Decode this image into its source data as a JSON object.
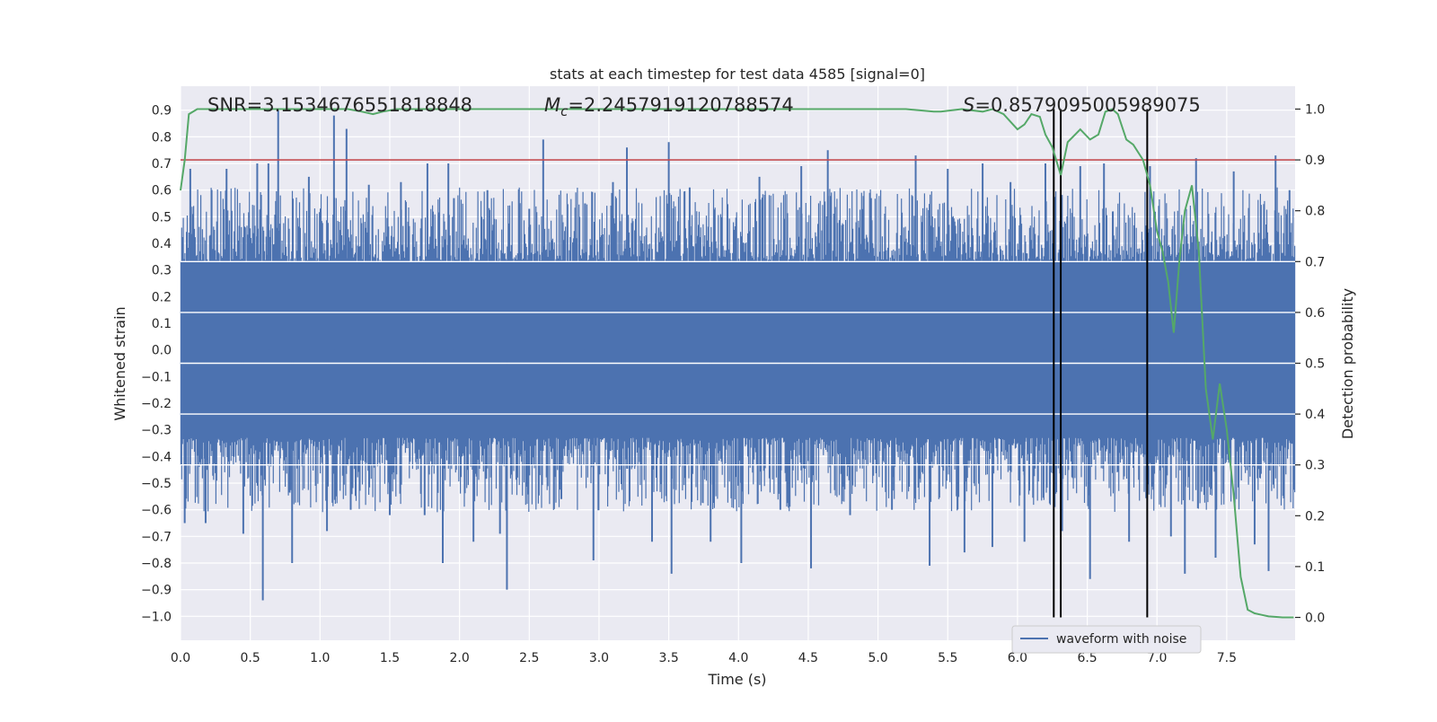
{
  "chart_data": {
    "type": "line",
    "title": "stats at each timestep for test data 4585 [signal=0]",
    "xlabel": "Time (s)",
    "ylabel": "Whitened strain",
    "ylabel_right": "Detection probability",
    "xlim": [
      0.0,
      7.99
    ],
    "ylim": [
      -1.09,
      0.99
    ],
    "ylim_right": [
      -0.045,
      1.045
    ],
    "x_ticks": [
      "0.0",
      "0.5",
      "1.0",
      "1.5",
      "2.0",
      "2.5",
      "3.0",
      "3.5",
      "4.0",
      "4.5",
      "5.0",
      "5.5",
      "6.0",
      "6.5",
      "7.0",
      "7.5"
    ],
    "y_ticks": [
      "0.9",
      "0.8",
      "0.7",
      "0.6",
      "0.5",
      "0.4",
      "0.3",
      "0.2",
      "0.1",
      "0.0",
      "−0.1",
      "−0.2",
      "−0.3",
      "−0.4",
      "−0.5",
      "−0.6",
      "−0.7",
      "−0.8",
      "−0.9",
      "−1.0"
    ],
    "y_ticks_right": [
      "1.0",
      "0.9",
      "0.8",
      "0.7",
      "0.6",
      "0.5",
      "0.4",
      "0.3",
      "0.2",
      "0.1",
      "0.0"
    ],
    "annotations": {
      "snr": "SNR=3.1534676551818848",
      "mc_symbol": "M",
      "mc_sub": "c",
      "mc_value": "=2.2457919120788574",
      "s_symbol": "S",
      "s_value": "=0.8579095005989075"
    },
    "legend": {
      "label": "waveform with noise",
      "placement": "lower-right"
    },
    "threshold_line": {
      "axis": "right",
      "value": 0.9,
      "color": "#c44e52"
    },
    "vertical_lines": [
      6.26,
      6.31,
      6.93
    ],
    "series": [
      {
        "name": "waveform with noise",
        "axis": "left",
        "color": "#4c72b0",
        "note": "dense noise signal, approx. uniform band ±0.3 with spikes up to ±0.9",
        "band": 0.3,
        "spikes": [
          [
            0.03,
            -0.65
          ],
          [
            0.07,
            0.68
          ],
          [
            0.18,
            -0.65
          ],
          [
            0.33,
            0.68
          ],
          [
            0.45,
            -0.69
          ],
          [
            0.55,
            0.7
          ],
          [
            0.59,
            -0.94
          ],
          [
            0.63,
            0.7
          ],
          [
            0.7,
            0.9
          ],
          [
            0.8,
            -0.8
          ],
          [
            0.92,
            0.65
          ],
          [
            1.05,
            -0.68
          ],
          [
            1.1,
            0.88
          ],
          [
            1.19,
            0.83
          ],
          [
            1.22,
            -0.6
          ],
          [
            1.35,
            0.62
          ],
          [
            1.5,
            -0.62
          ],
          [
            1.58,
            0.63
          ],
          [
            1.75,
            -0.62
          ],
          [
            1.77,
            0.7
          ],
          [
            1.88,
            -0.8
          ],
          [
            1.92,
            0.7
          ],
          [
            1.96,
            0.57
          ],
          [
            2.1,
            -0.72
          ],
          [
            2.2,
            0.6
          ],
          [
            2.29,
            -0.69
          ],
          [
            2.34,
            -0.9
          ],
          [
            2.5,
            0.53
          ],
          [
            2.6,
            0.79
          ],
          [
            2.73,
            -0.56
          ],
          [
            2.9,
            0.55
          ],
          [
            2.96,
            -0.79
          ],
          [
            3.1,
            0.63
          ],
          [
            3.2,
            0.76
          ],
          [
            3.38,
            -0.72
          ],
          [
            3.5,
            0.78
          ],
          [
            3.52,
            -0.84
          ],
          [
            3.65,
            0.61
          ],
          [
            3.8,
            -0.72
          ],
          [
            4.02,
            -0.8
          ],
          [
            4.15,
            0.65
          ],
          [
            4.3,
            -0.6
          ],
          [
            4.45,
            0.69
          ],
          [
            4.52,
            -0.82
          ],
          [
            4.64,
            0.75
          ],
          [
            4.8,
            -0.62
          ],
          [
            4.95,
            0.57
          ],
          [
            5.1,
            -0.6
          ],
          [
            5.27,
            0.73
          ],
          [
            5.37,
            -0.81
          ],
          [
            5.5,
            0.68
          ],
          [
            5.62,
            -0.76
          ],
          [
            5.75,
            0.7
          ],
          [
            5.82,
            -0.74
          ],
          [
            5.95,
            0.63
          ],
          [
            6.05,
            -0.72
          ],
          [
            6.2,
            0.7
          ],
          [
            6.32,
            -0.68
          ],
          [
            6.45,
            0.69
          ],
          [
            6.52,
            -0.86
          ],
          [
            6.62,
            0.7
          ],
          [
            6.8,
            -0.72
          ],
          [
            6.95,
            0.69
          ],
          [
            7.1,
            -0.7
          ],
          [
            7.2,
            -0.84
          ],
          [
            7.28,
            0.72
          ],
          [
            7.42,
            -0.78
          ],
          [
            7.55,
            0.67
          ],
          [
            7.7,
            -0.73
          ],
          [
            7.8,
            -0.83
          ],
          [
            7.85,
            0.73
          ],
          [
            7.95,
            0.6
          ]
        ]
      },
      {
        "name": "",
        "axis": "right",
        "color": "#55a868",
        "x": [
          0.0,
          0.03,
          0.06,
          0.12,
          0.3,
          0.6,
          0.9,
          1.1,
          1.2,
          1.3,
          1.38,
          1.45,
          1.55,
          1.7,
          2.0,
          2.5,
          3.0,
          3.5,
          4.0,
          4.5,
          5.0,
          5.2,
          5.4,
          5.45,
          5.6,
          5.75,
          5.82,
          5.9,
          5.95,
          6.0,
          6.05,
          6.1,
          6.16,
          6.2,
          6.25,
          6.31,
          6.36,
          6.45,
          6.52,
          6.58,
          6.63,
          6.68,
          6.72,
          6.78,
          6.83,
          6.9,
          6.95,
          7.0,
          7.04,
          7.08,
          7.12,
          7.16,
          7.2,
          7.25,
          7.3,
          7.35,
          7.4,
          7.45,
          7.5,
          7.55,
          7.6,
          7.65,
          7.7,
          7.75,
          7.8,
          7.9,
          7.98
        ],
        "y": [
          0.84,
          0.9,
          0.99,
          1.0,
          1.0,
          1.0,
          1.0,
          1.0,
          1.0,
          0.995,
          0.99,
          0.995,
          1.0,
          1.0,
          1.0,
          1.0,
          1.0,
          1.0,
          1.0,
          1.0,
          1.0,
          1.0,
          0.995,
          0.995,
          1.0,
          0.995,
          1.0,
          0.99,
          0.975,
          0.96,
          0.97,
          0.99,
          0.985,
          0.95,
          0.925,
          0.87,
          0.935,
          0.96,
          0.94,
          0.95,
          0.995,
          1.0,
          0.99,
          0.94,
          0.93,
          0.9,
          0.85,
          0.76,
          0.72,
          0.66,
          0.56,
          0.7,
          0.8,
          0.85,
          0.72,
          0.45,
          0.35,
          0.46,
          0.37,
          0.24,
          0.08,
          0.015,
          0.008,
          0.005,
          0.002,
          0.0,
          0.0
        ]
      }
    ]
  }
}
